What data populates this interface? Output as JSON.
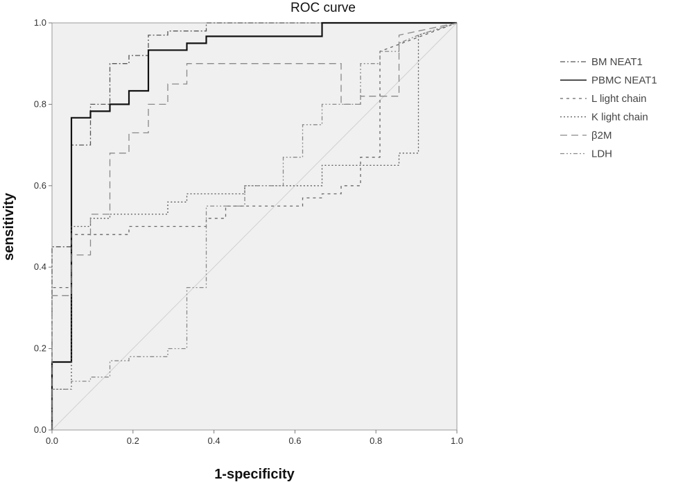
{
  "chart_data": {
    "type": "line",
    "title": "ROC curve",
    "xlabel": "1-specificity",
    "ylabel": "sensitivity",
    "xlim": [
      0,
      1
    ],
    "ylim": [
      0,
      1
    ],
    "xticks": [
      "0.0",
      "0.2",
      "0.4",
      "0.6",
      "0.8",
      "1.0"
    ],
    "yticks": [
      "0.0",
      "0.2",
      "0.4",
      "0.6",
      "0.8",
      "1.0"
    ],
    "grid": false,
    "legend_position": "right",
    "plot_background": "#f0f0f0",
    "reference_line": {
      "x": [
        0,
        1
      ],
      "y": [
        0,
        1
      ],
      "color": "#d0d0d0"
    },
    "series": [
      {
        "name": "BM NEAT1",
        "style": "dash-dot",
        "color": "#555555",
        "x": [
          0,
          0,
          0.048,
          0.048,
          0.095,
          0.095,
          0.143,
          0.143,
          0.19,
          0.19,
          0.238,
          0.238,
          0.286,
          0.286,
          0.381,
          0.381,
          1.0
        ],
        "y": [
          0,
          0.45,
          0.45,
          0.7,
          0.7,
          0.8,
          0.8,
          0.9,
          0.9,
          0.92,
          0.92,
          0.97,
          0.97,
          0.98,
          0.98,
          1.0,
          1.0
        ]
      },
      {
        "name": "PBMC NEAT1",
        "style": "solid",
        "color": "#111111",
        "x": [
          0,
          0,
          0.048,
          0.048,
          0.095,
          0.095,
          0.143,
          0.143,
          0.19,
          0.19,
          0.238,
          0.238,
          0.333,
          0.333,
          0.381,
          0.381,
          0.667,
          0.667,
          1.0
        ],
        "y": [
          0,
          0.167,
          0.167,
          0.767,
          0.767,
          0.783,
          0.783,
          0.8,
          0.8,
          0.833,
          0.833,
          0.933,
          0.933,
          0.95,
          0.95,
          0.967,
          0.967,
          1.0,
          1.0
        ]
      },
      {
        "name": "L light chain",
        "style": "dashed",
        "color": "#666666",
        "x": [
          0,
          0,
          0.048,
          0.048,
          0.19,
          0.19,
          0.381,
          0.381,
          0.429,
          0.429,
          0.619,
          0.619,
          0.667,
          0.667,
          0.714,
          0.714,
          0.762,
          0.762,
          0.81,
          0.81,
          1.0
        ],
        "y": [
          0,
          0.35,
          0.35,
          0.48,
          0.48,
          0.5,
          0.5,
          0.52,
          0.52,
          0.55,
          0.55,
          0.57,
          0.57,
          0.58,
          0.58,
          0.6,
          0.6,
          0.67,
          0.67,
          0.93,
          1.0
        ]
      },
      {
        "name": "K light chain",
        "style": "dotted",
        "color": "#555555",
        "x": [
          0,
          0,
          0.048,
          0.048,
          0.095,
          0.095,
          0.143,
          0.143,
          0.286,
          0.286,
          0.333,
          0.333,
          0.381,
          0.381,
          0.476,
          0.476,
          0.571,
          0.571,
          0.667,
          0.667,
          0.762,
          0.762,
          0.857,
          0.857,
          0.905,
          0.905,
          1.0
        ],
        "y": [
          0,
          0.1,
          0.1,
          0.5,
          0.5,
          0.52,
          0.52,
          0.53,
          0.53,
          0.56,
          0.56,
          0.58,
          0.58,
          0.58,
          0.58,
          0.6,
          0.6,
          0.6,
          0.6,
          0.65,
          0.65,
          0.65,
          0.65,
          0.68,
          0.68,
          0.97,
          1.0
        ]
      },
      {
        "name": "β2M",
        "style": "long-dash",
        "color": "#888888",
        "x": [
          0,
          0,
          0.048,
          0.048,
          0.095,
          0.095,
          0.143,
          0.143,
          0.19,
          0.19,
          0.238,
          0.238,
          0.286,
          0.286,
          0.333,
          0.333,
          0.571,
          0.571,
          0.714,
          0.714,
          0.762,
          0.762,
          0.857,
          0.857,
          1.0
        ],
        "y": [
          0,
          0.33,
          0.33,
          0.43,
          0.43,
          0.53,
          0.53,
          0.68,
          0.68,
          0.73,
          0.73,
          0.8,
          0.8,
          0.85,
          0.85,
          0.9,
          0.9,
          0.9,
          0.9,
          0.8,
          0.8,
          0.82,
          0.82,
          0.97,
          1.0
        ]
      },
      {
        "name": "LDH",
        "style": "dash-dot-dot",
        "color": "#888888",
        "x": [
          0,
          0,
          0.048,
          0.048,
          0.095,
          0.095,
          0.143,
          0.143,
          0.19,
          0.19,
          0.286,
          0.286,
          0.333,
          0.333,
          0.381,
          0.381,
          0.476,
          0.476,
          0.571,
          0.571,
          0.619,
          0.619,
          0.667,
          0.667,
          0.762,
          0.762,
          0.81,
          0.81,
          0.857,
          0.857,
          0.905,
          1.0
        ],
        "y": [
          0,
          0.1,
          0.1,
          0.12,
          0.12,
          0.13,
          0.13,
          0.17,
          0.17,
          0.18,
          0.18,
          0.2,
          0.2,
          0.35,
          0.35,
          0.55,
          0.55,
          0.6,
          0.6,
          0.67,
          0.67,
          0.75,
          0.75,
          0.8,
          0.8,
          0.9,
          0.9,
          0.93,
          0.93,
          0.95,
          0.97,
          1.0
        ]
      }
    ]
  }
}
